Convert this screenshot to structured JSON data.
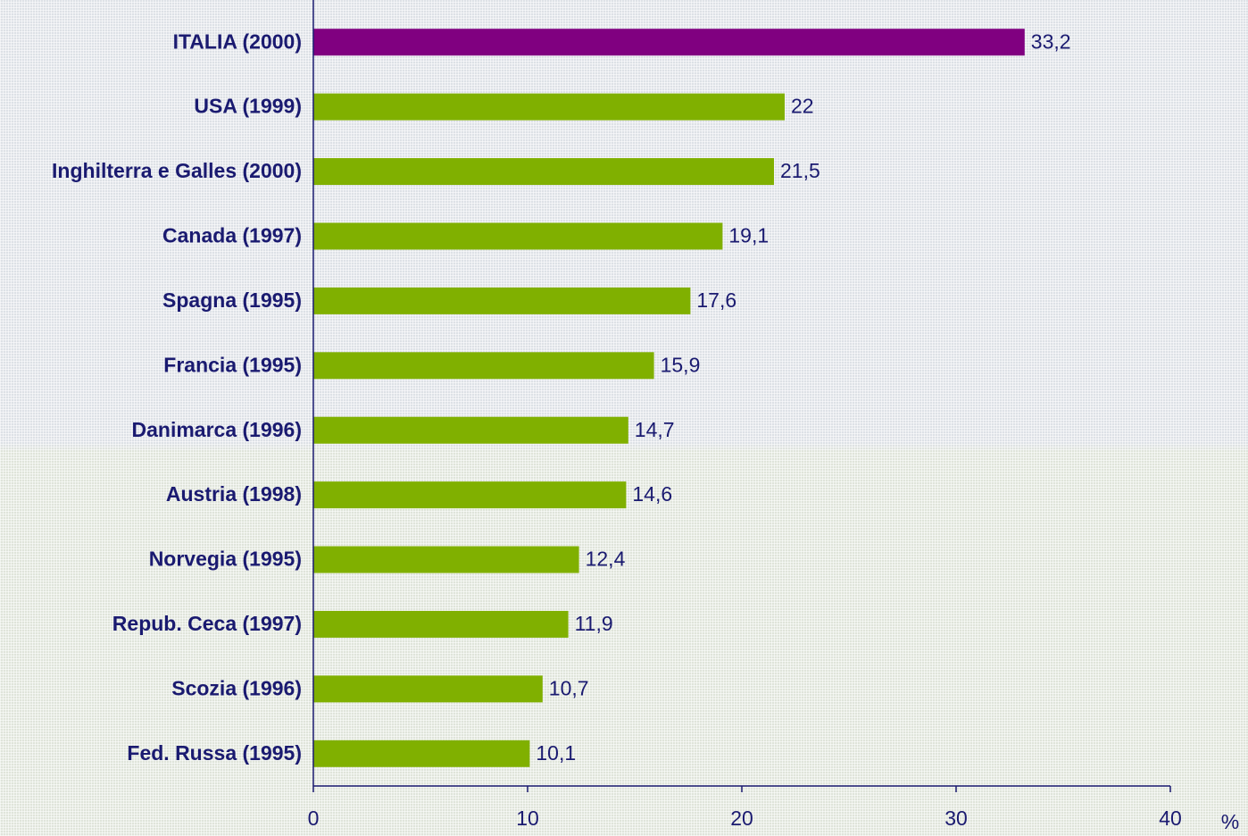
{
  "chart_data": {
    "type": "hbar",
    "categories": [
      "ITALIA (2000)",
      "USA (1999)",
      "Inghilterra e Galles (2000)",
      "Canada (1997)",
      "Spagna (1995)",
      "Francia (1995)",
      "Danimarca (1996)",
      "Austria (1998)",
      "Norvegia (1995)",
      "Repub. Ceca (1997)",
      "Scozia (1996)",
      "Fed. Russa (1995)"
    ],
    "values": [
      33.2,
      22,
      21.5,
      19.1,
      17.6,
      15.9,
      14.7,
      14.6,
      12.4,
      11.9,
      10.7,
      10.1
    ],
    "value_labels": [
      "33,2",
      "22",
      "21,5",
      "19,1",
      "17,6",
      "15,9",
      "14,7",
      "14,6",
      "12,4",
      "11,9",
      "10,7",
      "10,1"
    ],
    "colors": [
      "#800080",
      "#80b000",
      "#80b000",
      "#80b000",
      "#80b000",
      "#80b000",
      "#80b000",
      "#80b000",
      "#80b000",
      "#80b000",
      "#80b000",
      "#80b000"
    ],
    "xlabel": "%",
    "xlim": [
      0,
      40
    ],
    "xticks": [
      0,
      10,
      20,
      30,
      40
    ]
  }
}
